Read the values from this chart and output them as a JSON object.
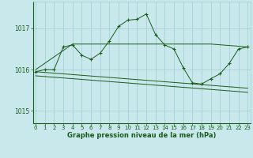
{
  "line1_x": [
    0,
    1,
    2,
    3,
    4,
    5,
    6,
    7,
    8,
    9,
    10,
    11,
    12,
    13,
    14,
    15,
    16,
    17,
    18,
    19,
    20,
    21,
    22,
    23
  ],
  "line1_y": [
    1015.95,
    1016.0,
    1016.0,
    1016.55,
    1016.6,
    1016.35,
    1016.25,
    1016.4,
    1016.7,
    1017.05,
    1017.2,
    1017.22,
    1017.35,
    1016.85,
    1016.6,
    1016.5,
    1016.05,
    1015.68,
    1015.65,
    1015.78,
    1015.9,
    1016.15,
    1016.5,
    1016.55
  ],
  "line2_x": [
    0,
    4,
    9,
    14,
    19,
    23
  ],
  "line2_y": [
    1016.0,
    1016.62,
    1016.62,
    1016.62,
    1016.62,
    1016.55
  ],
  "line3_x": [
    0,
    23
  ],
  "line3_y": [
    1015.95,
    1015.55
  ],
  "line4_x": [
    0,
    23
  ],
  "line4_y": [
    1015.85,
    1015.45
  ],
  "line_color": "#1a5c1a",
  "bg_color": "#c8e8ec",
  "grid_color": "#a0ccd4",
  "xlabel": "Graphe pression niveau de la mer (hPa)",
  "yticks": [
    1015,
    1016,
    1017
  ],
  "xticks": [
    0,
    1,
    2,
    3,
    4,
    5,
    6,
    7,
    8,
    9,
    10,
    11,
    12,
    13,
    14,
    15,
    16,
    17,
    18,
    19,
    20,
    21,
    22,
    23
  ],
  "ylim": [
    1014.7,
    1017.65
  ],
  "xlim": [
    -0.3,
    23.3
  ]
}
